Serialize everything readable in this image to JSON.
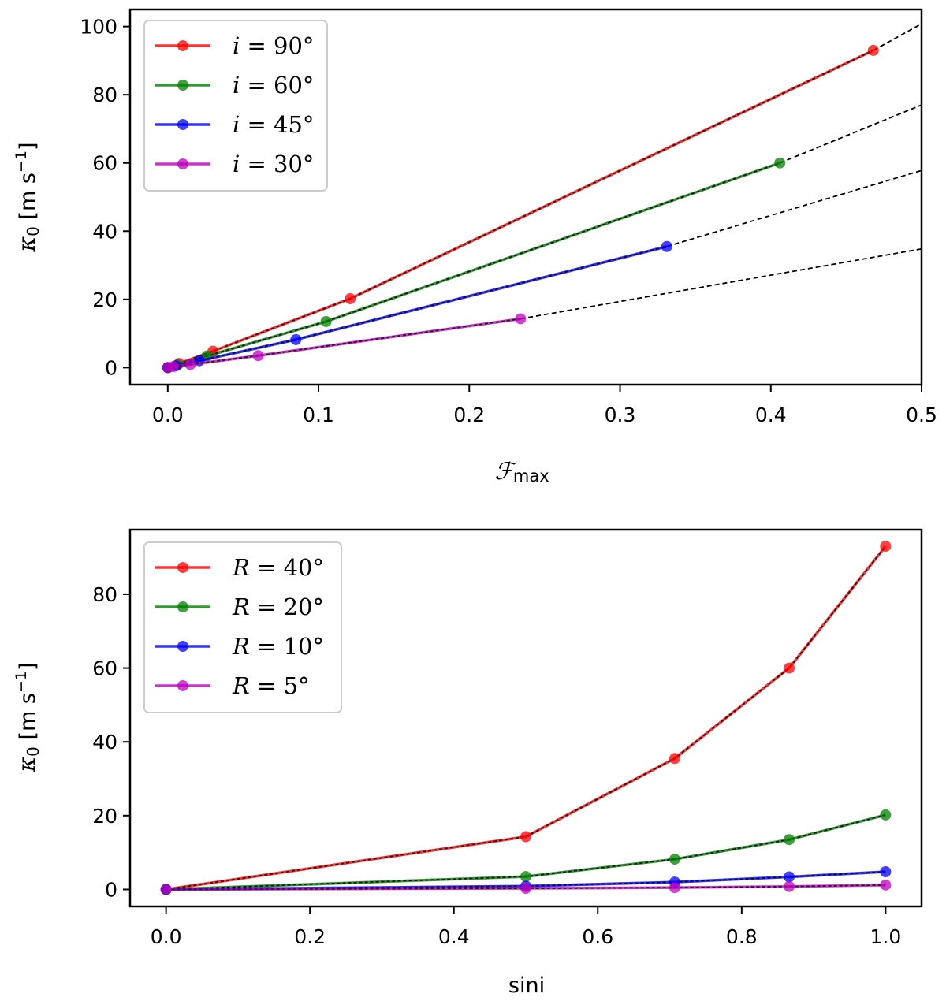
{
  "chart_data": [
    {
      "type": "line",
      "title": "",
      "xlabel": "F_max",
      "xlabel_parts": {
        "symbol": "ℱ",
        "subscript": "max"
      },
      "ylabel": "κ0 [m s−1]",
      "ylabel_parts": {
        "symbol": "κ",
        "subscript": "0",
        "unit": "[m s",
        "unit_sup": "−1",
        "unit_close": "]"
      },
      "xlim": [
        -0.025,
        0.5
      ],
      "ylim": [
        -5,
        105
      ],
      "xticks": [
        0.0,
        0.1,
        0.2,
        0.3,
        0.4,
        0.5
      ],
      "xtick_labels": [
        "0.0",
        "0.1",
        "0.2",
        "0.3",
        "0.4",
        "0.5"
      ],
      "yticks": [
        0,
        20,
        40,
        60,
        80,
        100
      ],
      "ytick_labels": [
        "0",
        "20",
        "40",
        "60",
        "80",
        "100"
      ],
      "legend_position": "top-left",
      "series": [
        {
          "name": "i = 90°",
          "legend_var": "i",
          "legend_val": "90°",
          "color": "#ff0000",
          "x": [
            0.0,
            0.0075,
            0.03,
            0.121,
            0.468
          ],
          "y": [
            0.0,
            1.2,
            4.8,
            20.2,
            93.0
          ]
        },
        {
          "name": "i = 60°",
          "legend_var": "i",
          "legend_val": "60°",
          "color": "#008000",
          "x": [
            0.0,
            0.0065,
            0.026,
            0.105,
            0.406
          ],
          "y": [
            0.0,
            0.8,
            3.4,
            13.5,
            60.0
          ]
        },
        {
          "name": "i = 45°",
          "legend_var": "i",
          "legend_val": "45°",
          "color": "#0000ff",
          "x": [
            0.0,
            0.0053,
            0.021,
            0.085,
            0.331
          ],
          "y": [
            0.0,
            0.5,
            2.0,
            8.2,
            35.5
          ]
        },
        {
          "name": "i = 30°",
          "legend_var": "i",
          "legend_val": "30°",
          "color": "#bf00bf",
          "x": [
            0.0,
            0.0037,
            0.015,
            0.06,
            0.234
          ],
          "y": [
            0.0,
            0.3,
            0.9,
            3.5,
            14.3
          ]
        }
      ],
      "extrapolations": [
        {
          "from": [
            0.468,
            93.0
          ],
          "to": [
            0.5,
            100.8
          ]
        },
        {
          "from": [
            0.406,
            60.0
          ],
          "to": [
            0.5,
            77.0
          ]
        },
        {
          "from": [
            0.331,
            35.5
          ],
          "to": [
            0.5,
            57.8
          ]
        },
        {
          "from": [
            0.234,
            14.3
          ],
          "to": [
            0.5,
            34.8
          ]
        }
      ]
    },
    {
      "type": "line",
      "title": "",
      "xlabel": "sini",
      "ylabel": "κ0 [m s−1]",
      "ylabel_parts": {
        "symbol": "κ",
        "subscript": "0",
        "unit": "[m s",
        "unit_sup": "−1",
        "unit_close": "]"
      },
      "xlim": [
        -0.05,
        1.05
      ],
      "ylim": [
        -4.6,
        97.5
      ],
      "xticks": [
        0.0,
        0.2,
        0.4,
        0.6,
        0.8,
        1.0
      ],
      "xtick_labels": [
        "0.0",
        "0.2",
        "0.4",
        "0.6",
        "0.8",
        "1.0"
      ],
      "yticks": [
        0,
        20,
        40,
        60,
        80
      ],
      "ytick_labels": [
        "0",
        "20",
        "40",
        "60",
        "80"
      ],
      "legend_position": "top-left",
      "series": [
        {
          "name": "R = 40°",
          "legend_var": "R",
          "legend_val": "40°",
          "color": "#ff0000",
          "x": [
            0.0,
            0.5,
            0.707,
            0.866,
            1.0
          ],
          "y": [
            0.0,
            14.3,
            35.5,
            60.0,
            93.0
          ]
        },
        {
          "name": "R = 20°",
          "legend_var": "R",
          "legend_val": "20°",
          "color": "#008000",
          "x": [
            0.0,
            0.5,
            0.707,
            0.866,
            1.0
          ],
          "y": [
            0.0,
            3.5,
            8.2,
            13.5,
            20.2
          ]
        },
        {
          "name": "R = 10°",
          "legend_var": "R",
          "legend_val": "10°",
          "color": "#0000ff",
          "x": [
            0.0,
            0.5,
            0.707,
            0.866,
            1.0
          ],
          "y": [
            0.0,
            0.9,
            2.0,
            3.4,
            4.8
          ]
        },
        {
          "name": "R = 5°",
          "legend_var": "R",
          "legend_val": "5°",
          "color": "#bf00bf",
          "x": [
            0.0,
            0.5,
            0.707,
            0.866,
            1.0
          ],
          "y": [
            0.0,
            0.3,
            0.5,
            0.8,
            1.2
          ]
        }
      ]
    }
  ]
}
